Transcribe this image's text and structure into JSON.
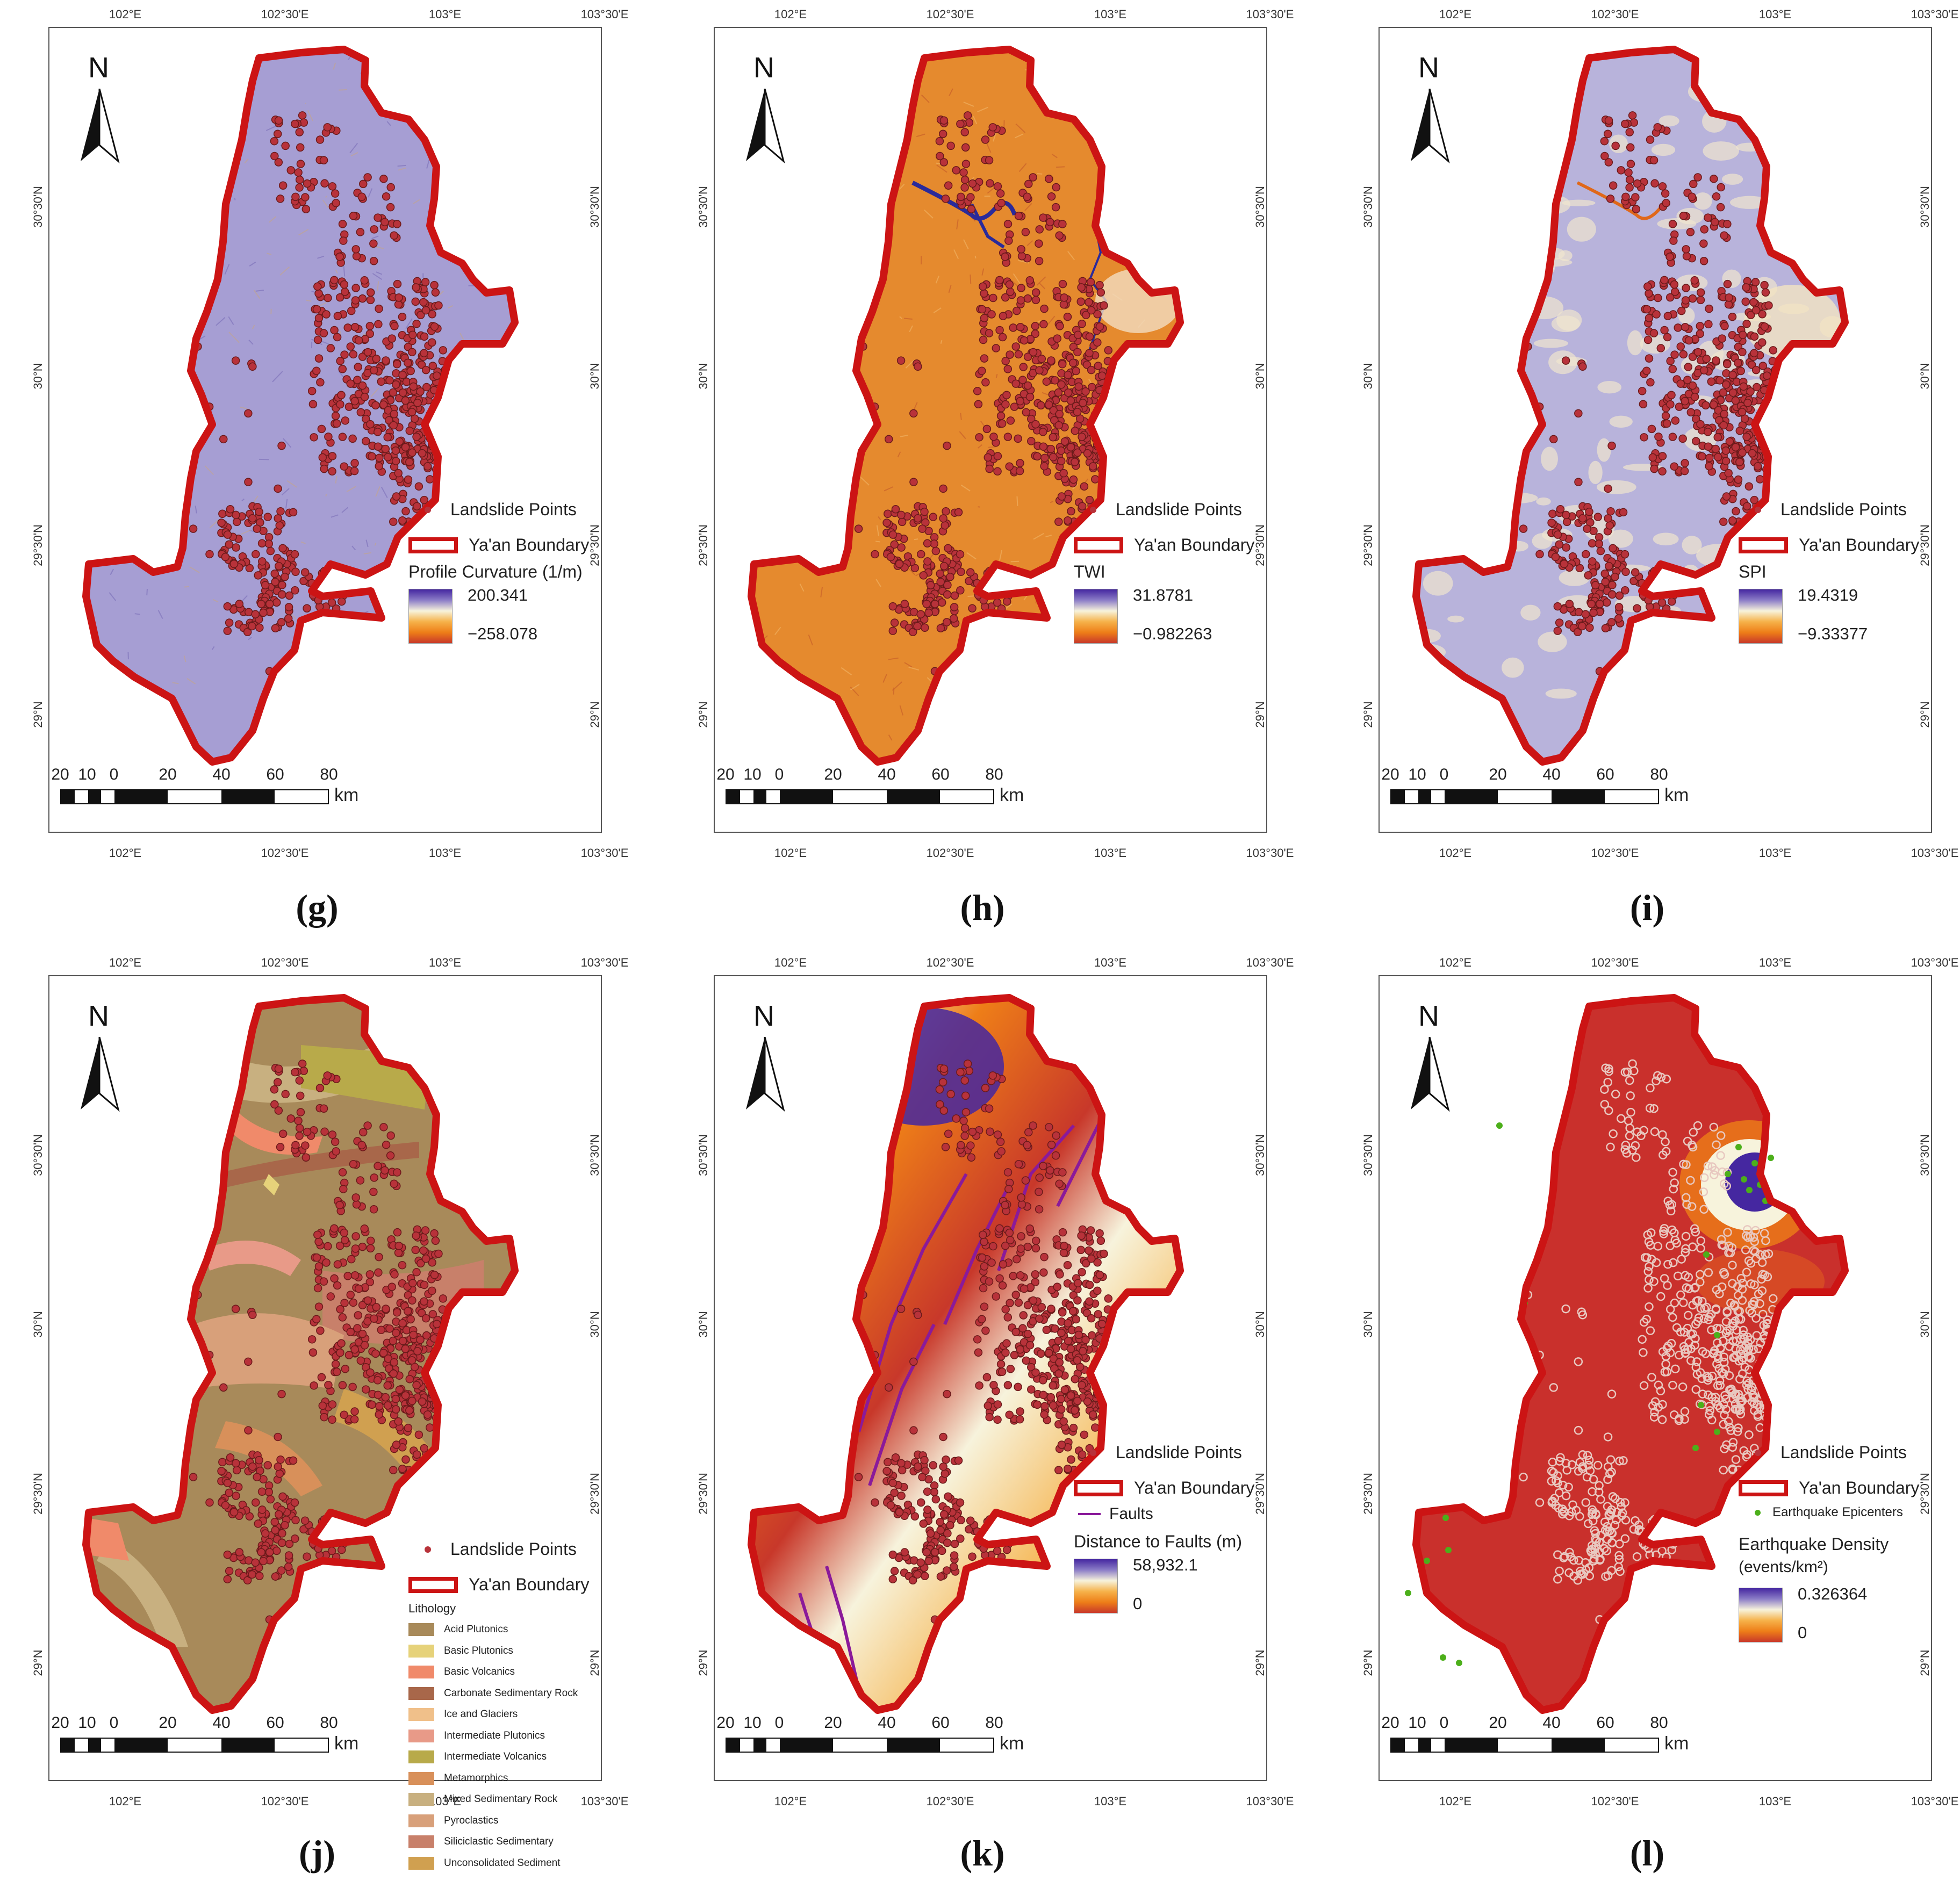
{
  "figure": {
    "lon_ticks": [
      "102°E",
      "102°30'E",
      "103°E",
      "103°30'E"
    ],
    "lat_ticks": [
      "30°30'N",
      "30°N",
      "29°30'N",
      "29°N"
    ],
    "north_label": "N",
    "scale_numbers": [
      "20",
      "10",
      "0",
      "20",
      "40",
      "60",
      "80"
    ],
    "scale_unit": "km",
    "landslide_label": "Landslide Points",
    "boundary_label": "Ya'an Boundary"
  },
  "panels": [
    {
      "id": "g",
      "caption": "(g)",
      "layer": "curvature",
      "legend_title": "Profile Curvature (1/m)",
      "max": "200.341",
      "min": "−258.078",
      "ramp": [
        "#4527a0",
        "#8b7cc7",
        "#f7f3dc",
        "#f6b24a",
        "#ee7e18",
        "#c8382a"
      ]
    },
    {
      "id": "h",
      "caption": "(h)",
      "layer": "twi",
      "legend_title": "TWI",
      "max": "31.8781",
      "min": "−0.982263",
      "ramp": [
        "#4527a0",
        "#8b7cc7",
        "#f7f3dc",
        "#f6b24a",
        "#ee7e18",
        "#c8382a"
      ]
    },
    {
      "id": "i",
      "caption": "(i)",
      "layer": "spi",
      "legend_title": "SPI",
      "max": "19.4319",
      "min": "−9.33377",
      "ramp": [
        "#4527a0",
        "#8b7cc7",
        "#f7f3dc",
        "#f6b24a",
        "#ee7e18",
        "#c8382a"
      ]
    },
    {
      "id": "j",
      "caption": "(j)",
      "layer": "lithology",
      "legend_title": "Lithology",
      "classes": [
        {
          "name": "Acid Plutonics",
          "color": "#a88a5a"
        },
        {
          "name": "Basic Plutonics",
          "color": "#e6d27a"
        },
        {
          "name": "Basic Volcanics",
          "color": "#f08a6a"
        },
        {
          "name": "Carbonate Sedimentary Rock",
          "color": "#a8674a"
        },
        {
          "name": "Ice and Glaciers",
          "color": "#f0c08a"
        },
        {
          "name": "Intermediate Plutonics",
          "color": "#e89a88"
        },
        {
          "name": "Intermediate Volcanics",
          "color": "#b8aa4a"
        },
        {
          "name": "Metamorphics",
          "color": "#d8905a"
        },
        {
          "name": "Mixed Sedimentary Rock",
          "color": "#c8b080"
        },
        {
          "name": "Pyroclastics",
          "color": "#d8a07a"
        },
        {
          "name": "Siliciclastic Sedimentary",
          "color": "#c8806a"
        },
        {
          "name": "Unconsolidated Sediment",
          "color": "#d0a050"
        }
      ]
    },
    {
      "id": "k",
      "caption": "(k)",
      "layer": "faults",
      "legend_title": "Distance to Faults (m)",
      "faults_label": "Faults",
      "max": "58,932.1",
      "min": "0",
      "ramp": [
        "#4527a0",
        "#8b7cc7",
        "#f7f3dc",
        "#f6b24a",
        "#ee7e18",
        "#c8382a"
      ]
    },
    {
      "id": "l",
      "caption": "(l)",
      "layer": "quake",
      "legend_title_1": "Earthquake Density",
      "legend_title_2": "(events/km²)",
      "epicenter_label": "Earthquake Epicenters",
      "max": "0.326364",
      "min": "0",
      "ramp": [
        "#4527a0",
        "#8b7cc7",
        "#f7f3dc",
        "#f6b24a",
        "#ee7e18",
        "#c8382a"
      ]
    }
  ]
}
